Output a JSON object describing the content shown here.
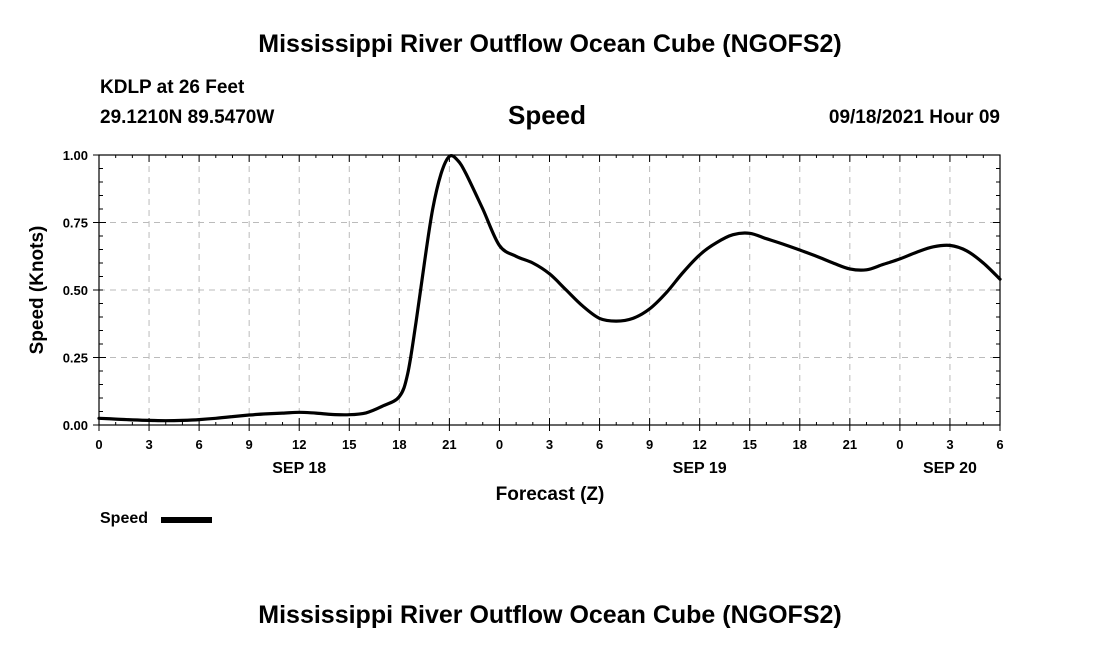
{
  "header": {
    "title": "Mississippi River Outflow Ocean Cube (NGOFS2)",
    "station": "KDLP at 26 Feet",
    "coords": "29.1210N  89.5470W",
    "chart_name": "Speed",
    "timestamp": "09/18/2021 Hour 09"
  },
  "footer": {
    "title": "Mississippi River Outflow Ocean Cube (NGOFS2)"
  },
  "legend": {
    "label": "Speed",
    "color": "#000000"
  },
  "chart_data": {
    "type": "line",
    "title": "Speed",
    "xlabel": "Forecast (Z)",
    "ylabel": "Speed (Knots)",
    "ylim": [
      0,
      1
    ],
    "xlim": [
      0,
      54
    ],
    "grid": true,
    "legend_position": "bottom-left",
    "x_ticks": [
      0,
      3,
      6,
      9,
      12,
      15,
      18,
      21,
      24,
      27,
      30,
      33,
      36,
      39,
      42,
      45,
      48,
      51,
      54
    ],
    "x_tick_labels": [
      "0",
      "3",
      "6",
      "9",
      "12",
      "15",
      "18",
      "21",
      "0",
      "3",
      "6",
      "9",
      "12",
      "15",
      "18",
      "21",
      "0",
      "3",
      "6"
    ],
    "date_labels": [
      {
        "hour": 12,
        "label": "SEP 18"
      },
      {
        "hour": 36,
        "label": "SEP 19"
      },
      {
        "hour": 51,
        "label": "SEP 20"
      }
    ],
    "y_ticks": [
      0,
      0.25,
      0.5,
      0.75,
      1.0
    ],
    "y_tick_labels": [
      "0.00",
      "0.25",
      "0.50",
      "0.75",
      "1.00"
    ],
    "series": [
      {
        "name": "Speed",
        "color": "#000000",
        "x": [
          0,
          1,
          2,
          3,
          4,
          5,
          6,
          7,
          8,
          9,
          10,
          11,
          12,
          13,
          14,
          15,
          16,
          17,
          18,
          18.5,
          19,
          19.5,
          20,
          20.5,
          21,
          21.5,
          22,
          23,
          24,
          25,
          26,
          27,
          28,
          29,
          30,
          31,
          32,
          33,
          34,
          35,
          36,
          37,
          38,
          39,
          40,
          41,
          42,
          43,
          44,
          45,
          46,
          47,
          48,
          49,
          50,
          51,
          52,
          53,
          54
        ],
        "y": [
          0.025,
          0.022,
          0.019,
          0.017,
          0.016,
          0.017,
          0.02,
          0.025,
          0.031,
          0.037,
          0.041,
          0.044,
          0.047,
          0.044,
          0.039,
          0.038,
          0.045,
          0.07,
          0.105,
          0.19,
          0.38,
          0.6,
          0.8,
          0.93,
          0.995,
          0.98,
          0.93,
          0.8,
          0.665,
          0.625,
          0.6,
          0.56,
          0.5,
          0.44,
          0.395,
          0.385,
          0.395,
          0.43,
          0.49,
          0.565,
          0.63,
          0.675,
          0.705,
          0.71,
          0.69,
          0.67,
          0.648,
          0.625,
          0.6,
          0.578,
          0.575,
          0.595,
          0.615,
          0.64,
          0.66,
          0.665,
          0.645,
          0.6,
          0.54
        ]
      }
    ]
  }
}
